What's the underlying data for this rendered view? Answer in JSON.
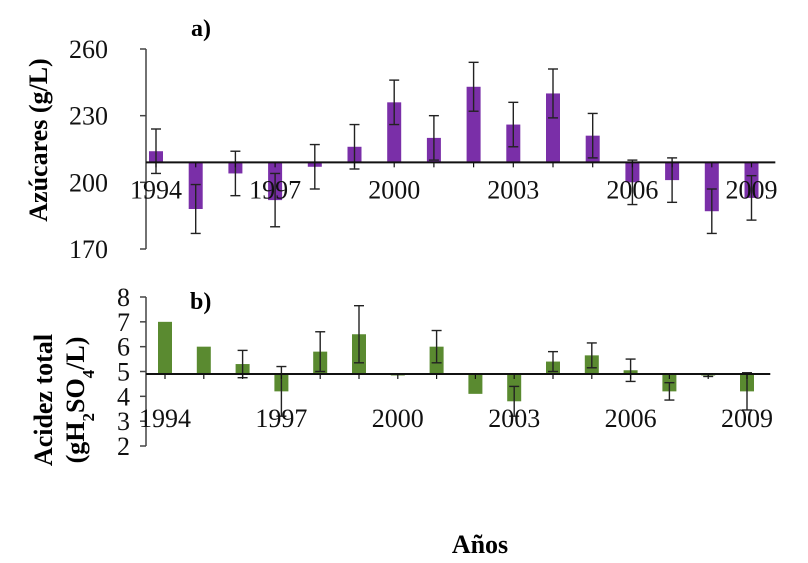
{
  "chart_data": [
    {
      "panel": "a)",
      "type": "bar",
      "ylabel": "Azúcares (g/L)",
      "ylim": [
        170,
        260
      ],
      "yticks": [
        "170",
        "200",
        "230",
        "260"
      ],
      "baseline": 209,
      "x": [
        1994,
        1995,
        1996,
        1997,
        1998,
        1999,
        2000,
        2001,
        2002,
        2003,
        2004,
        2005,
        2006,
        2007,
        2008,
        2009
      ],
      "xticks": [
        "1994",
        "1997",
        "2000",
        "2003",
        "2006",
        "2009"
      ],
      "values": [
        214,
        188,
        204,
        192,
        207,
        216,
        236,
        220,
        243,
        226,
        240,
        221,
        200,
        201,
        187,
        193
      ],
      "errors": [
        10,
        11,
        10,
        12,
        10,
        10,
        10,
        10,
        11,
        10,
        11,
        10,
        10,
        10,
        10,
        10
      ],
      "color": "#7a2fa8"
    },
    {
      "panel": "b)",
      "type": "bar",
      "ylabel_line1": "Acidez total",
      "ylabel_line2_prefix": "(gH",
      "ylabel_sub1": "2",
      "ylabel_mid": "SO",
      "ylabel_sub2": "4",
      "ylabel_suffix": "/L)",
      "ylim": [
        2,
        8
      ],
      "yticks": [
        "2",
        "3",
        "4",
        "5",
        "6",
        "7",
        "8"
      ],
      "baseline": 4.9,
      "x": [
        1994,
        1995,
        1996,
        1997,
        1998,
        1999,
        2000,
        2001,
        2002,
        2003,
        2004,
        2005,
        2006,
        2007,
        2008,
        2009
      ],
      "xticks": [
        "1994",
        "1997",
        "2000",
        "2003",
        "2006",
        "2009"
      ],
      "values": [
        7.0,
        6.0,
        5.3,
        4.2,
        5.8,
        6.5,
        4.85,
        6.0,
        4.1,
        3.8,
        5.4,
        5.65,
        5.05,
        4.2,
        4.85,
        4.2
      ],
      "errors": [
        0.0,
        0.0,
        0.55,
        1.0,
        0.8,
        1.15,
        0.0,
        0.65,
        0.0,
        0.6,
        0.4,
        0.5,
        0.45,
        0.35,
        0.05,
        0.75
      ],
      "color": "#5a8a30"
    }
  ],
  "xlabel": "Años"
}
